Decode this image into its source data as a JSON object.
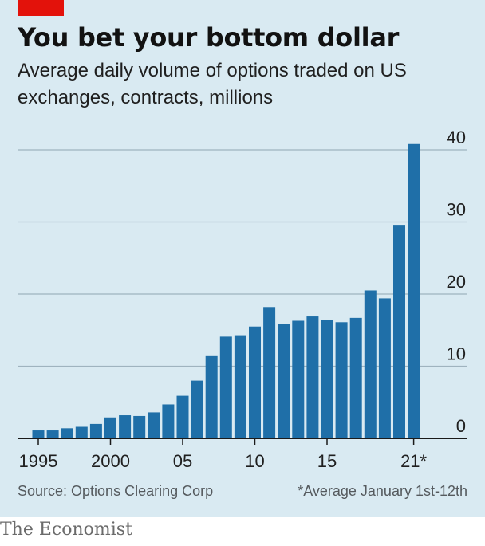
{
  "header": {
    "title": "You bet your bottom dollar",
    "subtitle": "Average daily volume of options traded on US exchanges, contracts, millions"
  },
  "footer": {
    "source": "Source: Options Clearing Corp",
    "note": "*Average January 1st-12th",
    "brand": "The Economist"
  },
  "colors": {
    "bar": "#1f6fa8",
    "grid": "#9fb3bf",
    "accent": "#e3120b",
    "background": "#d9eaf2"
  },
  "chart_data": {
    "type": "bar",
    "title": "You bet your bottom dollar",
    "subtitle": "Average daily volume of options traded on US exchanges, contracts, millions",
    "x": [
      1995,
      1996,
      1997,
      1998,
      1999,
      2000,
      2001,
      2002,
      2003,
      2004,
      2005,
      2006,
      2007,
      2008,
      2009,
      2010,
      2011,
      2012,
      2013,
      2014,
      2015,
      2016,
      2017,
      2018,
      2019,
      2020,
      2021
    ],
    "values": [
      1.1,
      1.1,
      1.4,
      1.6,
      2.0,
      2.9,
      3.2,
      3.1,
      3.6,
      4.7,
      5.9,
      8.0,
      11.4,
      14.1,
      14.3,
      15.5,
      18.2,
      15.9,
      16.3,
      16.9,
      16.4,
      16.1,
      16.7,
      20.5,
      19.4,
      29.6,
      40.8
    ],
    "xticks": [
      {
        "x": 1995,
        "label": "1995"
      },
      {
        "x": 2000,
        "label": "2000"
      },
      {
        "x": 2005,
        "label": "05"
      },
      {
        "x": 2010,
        "label": "10"
      },
      {
        "x": 2015,
        "label": "15"
      },
      {
        "x": 2021,
        "label": "21*"
      }
    ],
    "yticks": [
      0,
      10,
      20,
      30,
      40
    ],
    "ylim": [
      0,
      40
    ],
    "grid": true,
    "y_axis_side": "right"
  }
}
